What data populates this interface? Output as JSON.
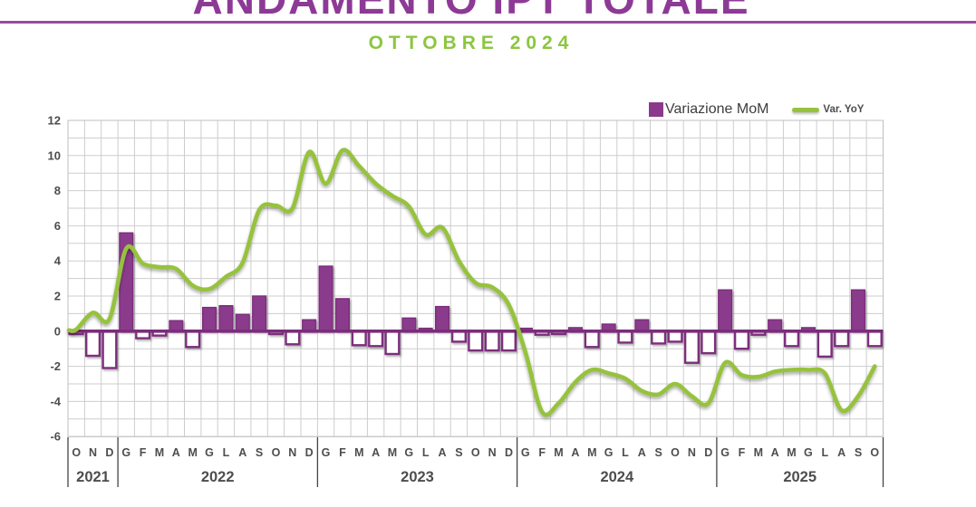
{
  "header": {
    "title": "ANDAMENTO IPT TOTALE",
    "subtitle": "OTTOBRE 2024"
  },
  "legend": {
    "mom_label": "Variazione MoM",
    "yoy_label": "Var. YoY"
  },
  "colors": {
    "title_purple": "#8d3a96",
    "divider_purple": "#9c4aa0",
    "subtitle_green": "#8cc63f",
    "bar_purple": "#8b3a8b",
    "bar_border_purple": "#7b2d7b",
    "line_green": "#96c23e",
    "axis_text": "#4d4d4d",
    "grid_line": "#cdcdcd",
    "plot_border": "#bfbfbf",
    "year_separator": "#454545"
  },
  "chart_data": {
    "type": "bar+line",
    "title": "ANDAMENTO IPT TOTALE",
    "subtitle": "OTTOBRE 2024",
    "categories": [
      "O",
      "N",
      "D",
      "G",
      "F",
      "M",
      "A",
      "M",
      "G",
      "L",
      "A",
      "S",
      "O",
      "N",
      "D",
      "G",
      "F",
      "M",
      "A",
      "M",
      "G",
      "L",
      "A",
      "S",
      "O",
      "N",
      "D",
      "G",
      "F",
      "M",
      "A",
      "M",
      "G",
      "L",
      "A",
      "S",
      "O",
      "N",
      "D",
      "G",
      "F",
      "M",
      "A",
      "M",
      "G",
      "L",
      "A",
      "S",
      "O"
    ],
    "year_groups": [
      {
        "label": "2021",
        "months": 3
      },
      {
        "label": "2022",
        "months": 12
      },
      {
        "label": "2023",
        "months": 12
      },
      {
        "label": "2024",
        "months": 12
      },
      {
        "label": "2025",
        "months": 10
      }
    ],
    "series": [
      {
        "name": "Variazione MoM",
        "type": "bar",
        "color": "#8b3a8b",
        "values": [
          -0.1,
          -1.4,
          -2.1,
          5.6,
          -0.4,
          -0.25,
          0.6,
          -0.9,
          1.35,
          1.45,
          0.95,
          2.0,
          -0.15,
          -0.75,
          0.65,
          3.7,
          1.85,
          -0.8,
          -0.85,
          -1.3,
          0.75,
          0.1,
          1.4,
          -0.6,
          -1.1,
          -1.1,
          -1.1,
          0.15,
          -0.2,
          -0.15,
          0.2,
          -0.9,
          0.4,
          -0.65,
          0.65,
          -0.7,
          -0.6,
          -1.8,
          -1.25,
          2.35,
          -1.0,
          -0.2,
          0.65,
          -0.85,
          0.2,
          -1.45,
          -0.85,
          2.35,
          -0.85
        ]
      },
      {
        "name": "Var. YoY",
        "type": "line",
        "color": "#96c23e",
        "values": [
          0.1,
          1.05,
          0.7,
          4.7,
          3.85,
          3.65,
          3.55,
          2.6,
          2.4,
          3.1,
          3.9,
          6.9,
          7.15,
          7.0,
          10.2,
          8.4,
          10.3,
          9.4,
          8.4,
          7.7,
          7.1,
          5.5,
          5.9,
          4.0,
          2.75,
          2.5,
          1.5,
          -1.2,
          -4.6,
          -4.1,
          -2.9,
          -2.2,
          -2.4,
          -2.7,
          -3.4,
          -3.6,
          -3.0,
          -3.7,
          -4.1,
          -1.8,
          -2.5,
          -2.6,
          -2.3,
          -2.2,
          -2.2,
          -2.4,
          -4.5,
          -3.7,
          -2.0
        ]
      }
    ],
    "ylim": [
      -6,
      12
    ],
    "y_ticks": [
      12,
      10,
      8,
      6,
      4,
      2,
      0,
      -2,
      -4,
      -6
    ],
    "grid": true,
    "legend_position": "top-right"
  }
}
